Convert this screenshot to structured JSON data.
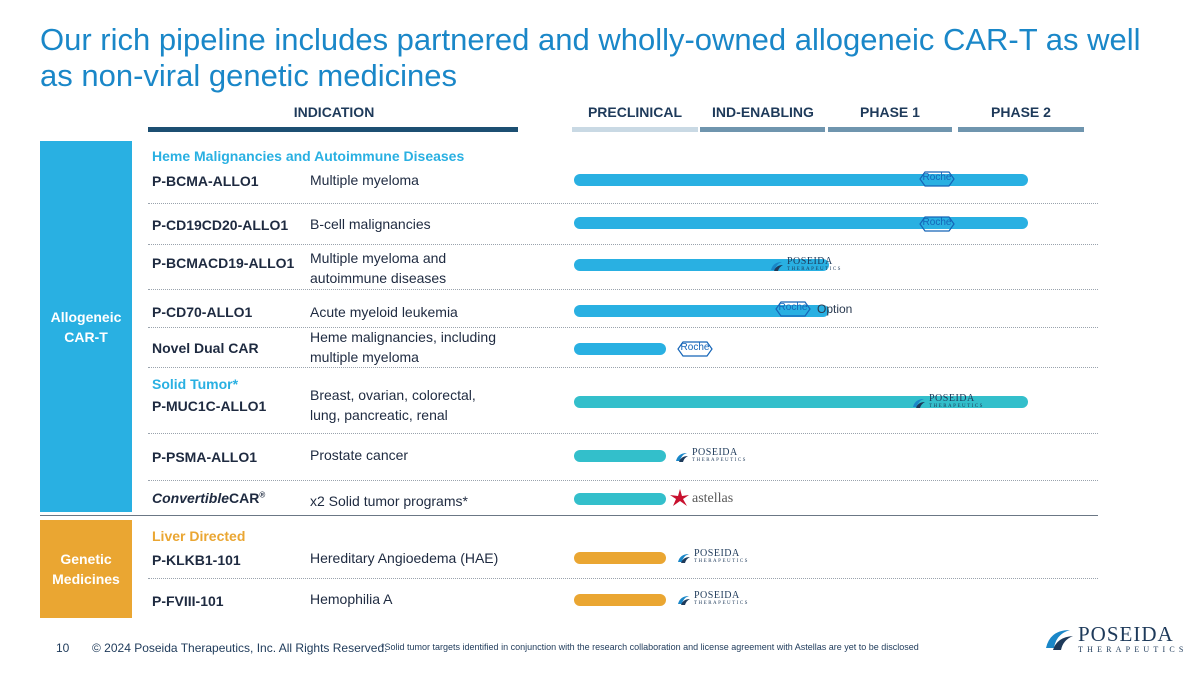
{
  "slide": {
    "title": "Our rich pipeline includes partnered and wholly-owned allogeneic CAR-T as well as non-viral genetic medicines",
    "page_number": "10",
    "copyright": "© 2024 Poseida Therapeutics, Inc. All Rights Reserved.",
    "footnote": "*Solid tumor targets identified in conjunction with the research collaboration and license agreement with Astellas are yet to be disclosed"
  },
  "columns": {
    "indication": "INDICATION",
    "stages": [
      "PRECLINICAL",
      "IND-ENABLING",
      "PHASE 1",
      "PHASE 2"
    ]
  },
  "colors": {
    "title": "#1a87c8",
    "header_dark": "#1c4f72",
    "preclinical_bar": "#c9d9e4",
    "stage_bar": "#6f95ae",
    "allogeneic": "#29b0e2",
    "solid_tumor": "#33bfcb",
    "genetic": "#eaa632",
    "solid_tumor_label": "#29b0e2",
    "liver_label": "#eaa632"
  },
  "sections": {
    "allogeneic": {
      "label_line1": "Allogeneic",
      "label_line2": "CAR-T",
      "group1": "Heme Malignancies and Autoimmune Diseases",
      "group2": "Solid Tumor*"
    },
    "genetic": {
      "label_line1": "Genetic",
      "label_line2": "Medicines",
      "group1": "Liver Directed"
    }
  },
  "programs": [
    {
      "name": "P-BCMA-ALLO1",
      "indication_line1": "Multiple myeloma",
      "indication_line2": "",
      "progress": 0.89,
      "partner": "roche-icon",
      "partner_text": "Roche"
    },
    {
      "name": "P-CD19CD20-ALLO1",
      "indication_line1": "B-cell malignancies",
      "indication_line2": "",
      "progress": 0.89,
      "partner": "roche-icon",
      "partner_text": "Roche"
    },
    {
      "name": "P-BCMACD19-ALLO1",
      "indication_line1": "Multiple myeloma and",
      "indication_line2": "autoimmune diseases",
      "progress": 0.5,
      "partner": "poseida-logo"
    },
    {
      "name": "P-CD70-ALLO1",
      "indication_line1": "Acute myeloid leukemia",
      "indication_line2": "",
      "progress": 0.5,
      "partner": "roche-icon",
      "partner_text": "Roche",
      "partner_note": "Option"
    },
    {
      "name": "Novel Dual CAR",
      "indication_line1": "Heme malignancies, including",
      "indication_line2": "multiple myeloma",
      "progress": 0.18,
      "partner": "roche-icon",
      "partner_text": "Roche"
    },
    {
      "name": "P-MUC1C-ALLO1",
      "indication_line1": "Breast, ovarian, colorectal,",
      "indication_line2": "lung, pancreatic, renal",
      "progress": 0.89,
      "partner": "poseida-logo"
    },
    {
      "name": "P-PSMA-ALLO1",
      "indication_line1": "Prostate cancer",
      "indication_line2": "",
      "progress": 0.18,
      "partner": "poseida-logo"
    },
    {
      "name_italic": "Convertible",
      "name_rest": "CAR",
      "name_sup": "®",
      "indication_line1": "x2 Solid tumor programs*",
      "indication_line2": "",
      "progress": 0.18,
      "partner": "astellas-logo",
      "partner_text": "astellas"
    },
    {
      "name": "P-KLKB1-101",
      "indication_line1": "Hereditary Angioedema (HAE)",
      "indication_line2": "",
      "progress": 0.18,
      "partner": "poseida-logo"
    },
    {
      "name": "P-FVIII-101",
      "indication_line1": "Hemophilia A",
      "indication_line2": "",
      "progress": 0.18,
      "partner": "poseida-logo"
    }
  ],
  "logos": {
    "poseida_word": "POSEIDA",
    "poseida_sub": "THERAPEUTICS"
  }
}
